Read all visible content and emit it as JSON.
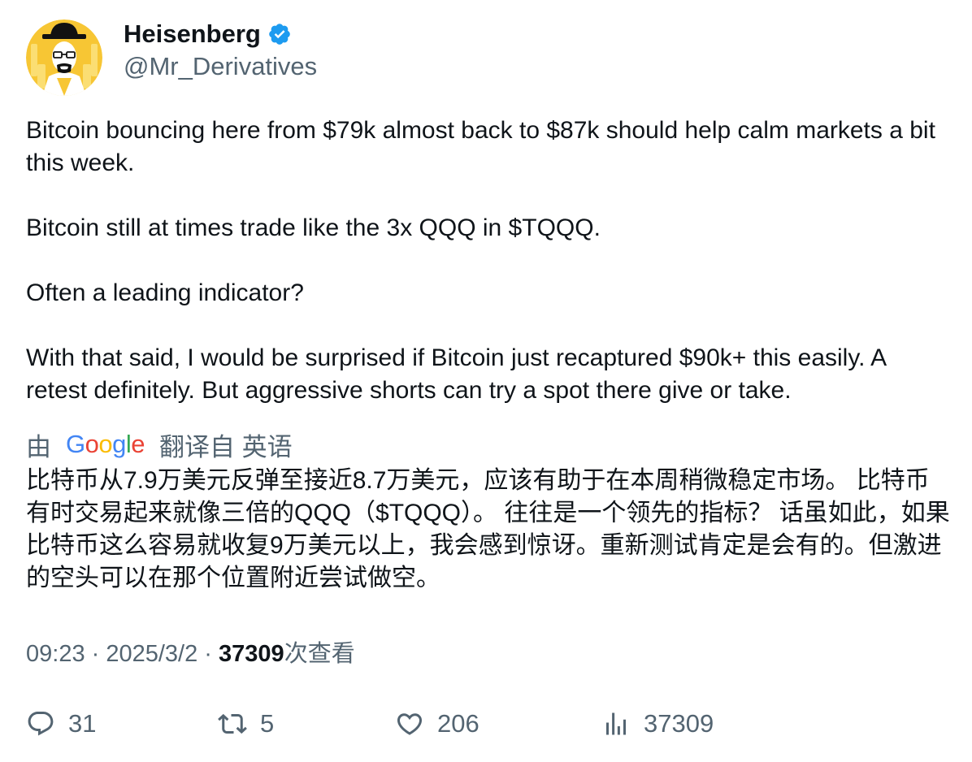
{
  "author": {
    "display_name": "Heisenberg",
    "handle": "@Mr_Derivatives",
    "verified": true
  },
  "tweet": {
    "paragraphs": [
      "Bitcoin bouncing here from $79k almost back to $87k should help calm markets a bit this week.",
      "Bitcoin still at times trade like the 3x QQQ in $TQQQ.",
      "Often a leading indicator?",
      "With that said, I would be surprised if Bitcoin just recaptured $90k+ this easily. A retest definitely. But aggressive shorts can try a spot there give or take."
    ],
    "translation_prefix": "由",
    "translation_brand": "Google",
    "translation_suffix": "翻译自 英语",
    "translation_text": "比特币从7.9万美元反弹至接近8.7万美元，应该有助于在本周稍微稳定市场。 比特币有时交易起来就像三倍的QQQ（$TQQQ）。 往往是一个领先的指标？ 话虽如此，如果比特币这么容易就收复9万美元以上，我会感到惊讶。重新测试肯定是会有的。但激进的空头可以在那个位置附近尝试做空。"
  },
  "meta": {
    "time": "09:23",
    "separator": " · ",
    "date": "2025/3/2",
    "views_count": "37309",
    "views_label": "次查看"
  },
  "actions": {
    "replies": "31",
    "retweets": "5",
    "likes": "206",
    "views": "37309"
  },
  "colors": {
    "text_primary": "#0f1419",
    "text_secondary": "#536471",
    "verified_badge": "#1d9bf0",
    "avatar_background": "#f7c634"
  }
}
